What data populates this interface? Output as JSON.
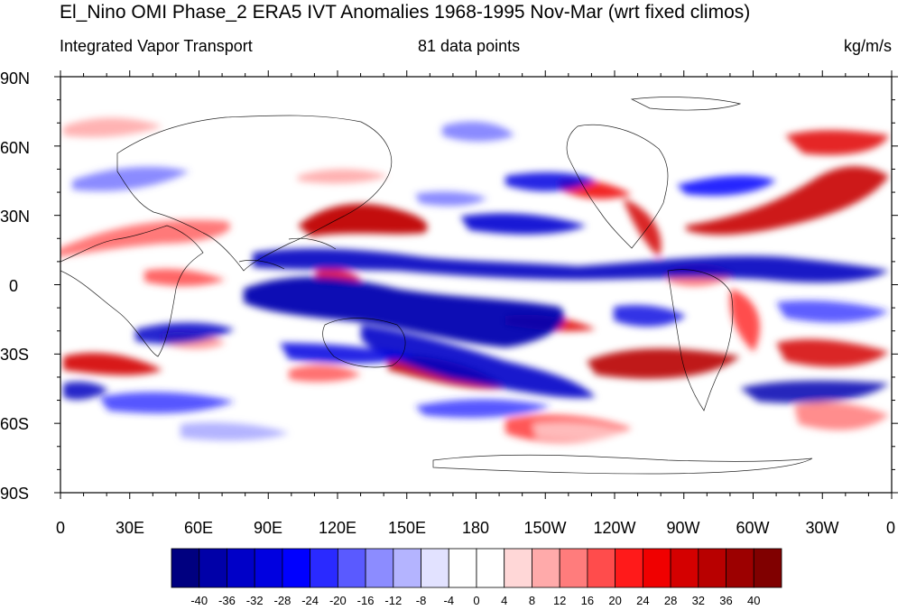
{
  "header": {
    "title": "El_Nino OMI Phase_2 ERA5 IVT Anomalies 1968-1995 Nov-Mar (wrt fixed climos)",
    "left_subtitle": "Integrated Vapor Transport",
    "center_subtitle": "81 data points",
    "right_subtitle": "kg/m/s"
  },
  "map": {
    "projection": "cylindrical equidistant",
    "lat_labels": [
      "90N",
      "60N",
      "30N",
      "0",
      "30S",
      "60S",
      "90S"
    ],
    "lon_labels": [
      "0",
      "30E",
      "60E",
      "90E",
      "120E",
      "150E",
      "180",
      "150W",
      "120W",
      "90W",
      "60W",
      "30W",
      "0"
    ],
    "coastlines": true
  },
  "colorbar": {
    "colors": [
      "#000080",
      "#0000a8",
      "#0000c8",
      "#0000e0",
      "#0000ff",
      "#2a2aff",
      "#5a5aff",
      "#8c8cff",
      "#b4b4ff",
      "#e2e2ff",
      "#ffffff",
      "#ffffff",
      "#ffd7d7",
      "#ffaaaa",
      "#ff7c7c",
      "#ff4c4c",
      "#ff1a1a",
      "#f00000",
      "#d40000",
      "#b80000",
      "#9c0000",
      "#800000"
    ],
    "labels": [
      "-40",
      "-36",
      "-32",
      "-28",
      "-24",
      "-20",
      "-16",
      "-12",
      "-8",
      "-4",
      "0",
      "4",
      "8",
      "12",
      "16",
      "20",
      "24",
      "28",
      "32",
      "36",
      "40"
    ]
  }
}
